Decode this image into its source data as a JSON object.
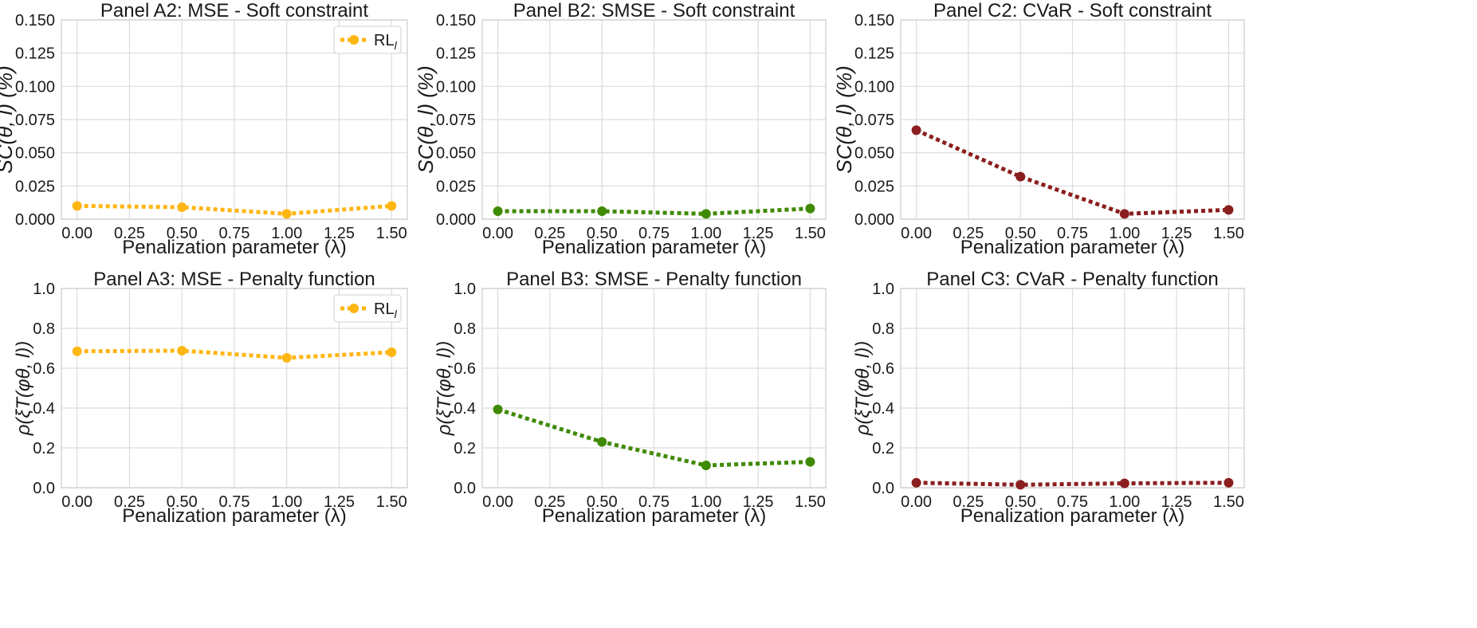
{
  "chart_data": [
    {
      "type": "line",
      "title": "Panel A2: MSE - Soft constraint",
      "xlabel": "Penalization parameter (λ)",
      "ylabel": "SC(θ, l) (%)",
      "x": [
        0.0,
        0.5,
        1.0,
        1.5
      ],
      "xticks": [
        "0.00",
        "0.25",
        "0.50",
        "0.75",
        "1.00",
        "1.25",
        "1.50"
      ],
      "xlim": [
        -0.075,
        1.575
      ],
      "ylim": [
        0,
        0.15
      ],
      "yticks": [
        "0.000",
        "0.025",
        "0.050",
        "0.075",
        "0.100",
        "0.125",
        "0.150"
      ],
      "grid": true,
      "legend": "top-right",
      "series": [
        {
          "name": "RLl",
          "color": "#FFB612",
          "values": [
            0.01,
            0.009,
            0.004,
            0.01
          ]
        }
      ],
      "legend_label": {
        "main": "RL",
        "sub": "l"
      }
    },
    {
      "type": "line",
      "title": "Panel B2: SMSE - Soft constraint",
      "xlabel": "Penalization parameter (λ)",
      "ylabel": "SC(θ, l) (%)",
      "x": [
        0.0,
        0.5,
        1.0,
        1.5
      ],
      "xticks": [
        "0.00",
        "0.25",
        "0.50",
        "0.75",
        "1.00",
        "1.25",
        "1.50"
      ],
      "xlim": [
        -0.075,
        1.575
      ],
      "ylim": [
        0,
        0.15
      ],
      "yticks": [
        "0.000",
        "0.025",
        "0.050",
        "0.075",
        "0.100",
        "0.125",
        "0.150"
      ],
      "grid": true,
      "series": [
        {
          "name": "SMSE",
          "color": "#3F8A00",
          "values": [
            0.006,
            0.006,
            0.004,
            0.008
          ]
        }
      ]
    },
    {
      "type": "line",
      "title": "Panel C2: CVaR - Soft constraint",
      "xlabel": "Penalization parameter (λ)",
      "ylabel": "SC(θ, l) (%)",
      "x": [
        0.0,
        0.5,
        1.0,
        1.5
      ],
      "xticks": [
        "0.00",
        "0.25",
        "0.50",
        "0.75",
        "1.00",
        "1.25",
        "1.50"
      ],
      "xlim": [
        -0.075,
        1.575
      ],
      "ylim": [
        0,
        0.15
      ],
      "yticks": [
        "0.000",
        "0.025",
        "0.050",
        "0.075",
        "0.100",
        "0.125",
        "0.150"
      ],
      "grid": true,
      "series": [
        {
          "name": "CVaR",
          "color": "#8B1E1E",
          "values": [
            0.067,
            0.032,
            0.004,
            0.007
          ]
        }
      ]
    },
    {
      "type": "line",
      "title": "Panel A3: MSE - Penalty function",
      "xlabel": "Penalization parameter (λ)",
      "ylabel": "ρ(ξT(φθ, l))",
      "x": [
        0.0,
        0.5,
        1.0,
        1.5
      ],
      "xticks": [
        "0.00",
        "0.25",
        "0.50",
        "0.75",
        "1.00",
        "1.25",
        "1.50"
      ],
      "xlim": [
        -0.075,
        1.575
      ],
      "ylim": [
        0,
        1.0
      ],
      "yticks": [
        "0.0",
        "0.2",
        "0.4",
        "0.6",
        "0.8",
        "1.0"
      ],
      "grid": true,
      "legend": "top-right",
      "series": [
        {
          "name": "RLl",
          "color": "#FFB612",
          "values": [
            0.685,
            0.688,
            0.652,
            0.68
          ]
        }
      ],
      "legend_label": {
        "main": "RL",
        "sub": "l"
      }
    },
    {
      "type": "line",
      "title": "Panel B3: SMSE - Penalty function",
      "xlabel": "Penalization parameter (λ)",
      "ylabel": "ρ(ξT(φθ, l))",
      "x": [
        0.0,
        0.5,
        1.0,
        1.5
      ],
      "xticks": [
        "0.00",
        "0.25",
        "0.50",
        "0.75",
        "1.00",
        "1.25",
        "1.50"
      ],
      "xlim": [
        -0.075,
        1.575
      ],
      "ylim": [
        0,
        1.0
      ],
      "yticks": [
        "0.0",
        "0.2",
        "0.4",
        "0.6",
        "0.8",
        "1.0"
      ],
      "grid": true,
      "series": [
        {
          "name": "SMSE",
          "color": "#3F8A00",
          "values": [
            0.393,
            0.23,
            0.112,
            0.13
          ]
        }
      ]
    },
    {
      "type": "line",
      "title": "Panel C3: CVaR - Penalty function",
      "xlabel": "Penalization parameter (λ)",
      "ylabel": "ρ(ξT(φθ, l))",
      "x": [
        0.0,
        0.5,
        1.0,
        1.5
      ],
      "xticks": [
        "0.00",
        "0.25",
        "0.50",
        "0.75",
        "1.00",
        "1.25",
        "1.50"
      ],
      "xlim": [
        -0.075,
        1.575
      ],
      "ylim": [
        0,
        1.0
      ],
      "yticks": [
        "0.0",
        "0.2",
        "0.4",
        "0.6",
        "0.8",
        "1.0"
      ],
      "grid": true,
      "series": [
        {
          "name": "CVaR",
          "color": "#8B1E1E",
          "values": [
            0.025,
            0.015,
            0.022,
            0.025
          ]
        }
      ]
    }
  ]
}
